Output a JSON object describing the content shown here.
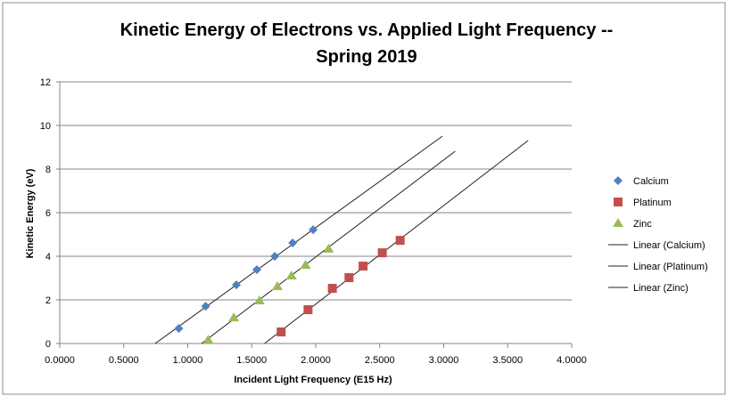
{
  "chart_data": {
    "type": "scatter",
    "title": "Kinetic Energy of Electrons vs. Applied Light Frequency -- Spring 2019",
    "title_lines": [
      "Kinetic Energy of Electrons vs. Applied Light Frequency --",
      "Spring 2019"
    ],
    "xlabel": "Incident Light Frequency (E15 Hz)",
    "ylabel": "Kinetic Energy (eV)",
    "xlim": [
      0,
      4
    ],
    "ylim": [
      0,
      12
    ],
    "xticks": [
      "0.0000",
      "0.5000",
      "1.0000",
      "1.5000",
      "2.0000",
      "2.5000",
      "3.0000",
      "3.5000",
      "4.0000"
    ],
    "yticks": [
      "0",
      "2",
      "4",
      "6",
      "8",
      "10",
      "12"
    ],
    "grid": "horizontal",
    "legend_position": "right",
    "series": [
      {
        "name": "Calcium",
        "marker": "diamond",
        "color": "#4f81bd",
        "x": [
          0.93,
          1.14,
          1.38,
          1.54,
          1.68,
          1.82,
          1.98
        ],
        "y": [
          0.69,
          1.71,
          2.69,
          3.39,
          4.0,
          4.61,
          5.22
        ]
      },
      {
        "name": "Platinum",
        "marker": "square",
        "color": "#c0504d",
        "x": [
          1.73,
          1.94,
          2.13,
          2.26,
          2.37,
          2.52,
          2.66
        ],
        "y": [
          0.53,
          1.55,
          2.53,
          3.02,
          3.55,
          4.16,
          4.73
        ]
      },
      {
        "name": "Zinc",
        "marker": "triangle",
        "color": "#9bbb59",
        "x": [
          1.16,
          1.36,
          1.56,
          1.7,
          1.81,
          1.92,
          2.1
        ],
        "y": [
          0.16,
          1.18,
          1.96,
          2.61,
          3.1,
          3.59,
          4.33
        ]
      }
    ],
    "trendlines": [
      {
        "name": "Linear (Calcium)",
        "x": [
          0.746,
          2.99
        ],
        "y": [
          0,
          9.51
        ]
      },
      {
        "name": "Linear (Platinum)",
        "x": [
          1.6,
          3.66
        ],
        "y": [
          0,
          9.31
        ]
      },
      {
        "name": "Linear (Zinc)",
        "x": [
          1.108,
          3.09
        ],
        "y": [
          0,
          8.82
        ]
      }
    ]
  }
}
